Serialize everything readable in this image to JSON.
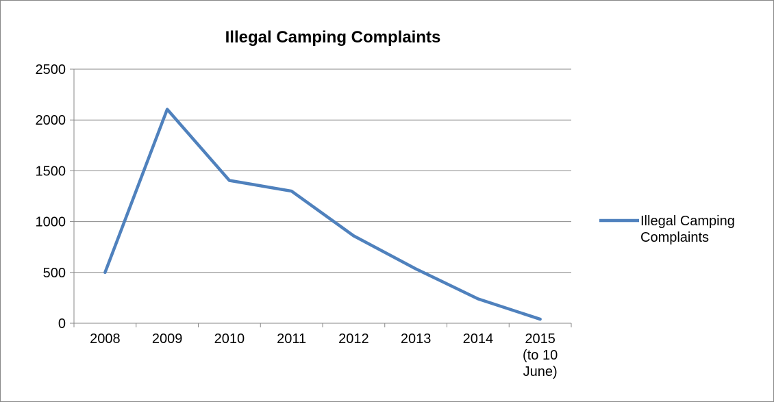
{
  "chart_data": {
    "type": "line",
    "title": "Illegal Camping Complaints",
    "categories": [
      [
        "2008"
      ],
      [
        "2009"
      ],
      [
        "2010"
      ],
      [
        "2011"
      ],
      [
        "2012"
      ],
      [
        "2013"
      ],
      [
        "2014"
      ],
      [
        "2015",
        "(to 10",
        "June)"
      ]
    ],
    "series": [
      {
        "name": "Illegal Camping Complaints",
        "color": "#4F81BD",
        "values": [
          500,
          2105,
          1405,
          1300,
          860,
          535,
          240,
          40
        ]
      }
    ],
    "ylim": [
      0,
      2500
    ],
    "yticks": [
      0,
      500,
      1000,
      1500,
      2000,
      2500
    ],
    "grid": "horizontal major gridlines",
    "legend_position": "right"
  }
}
